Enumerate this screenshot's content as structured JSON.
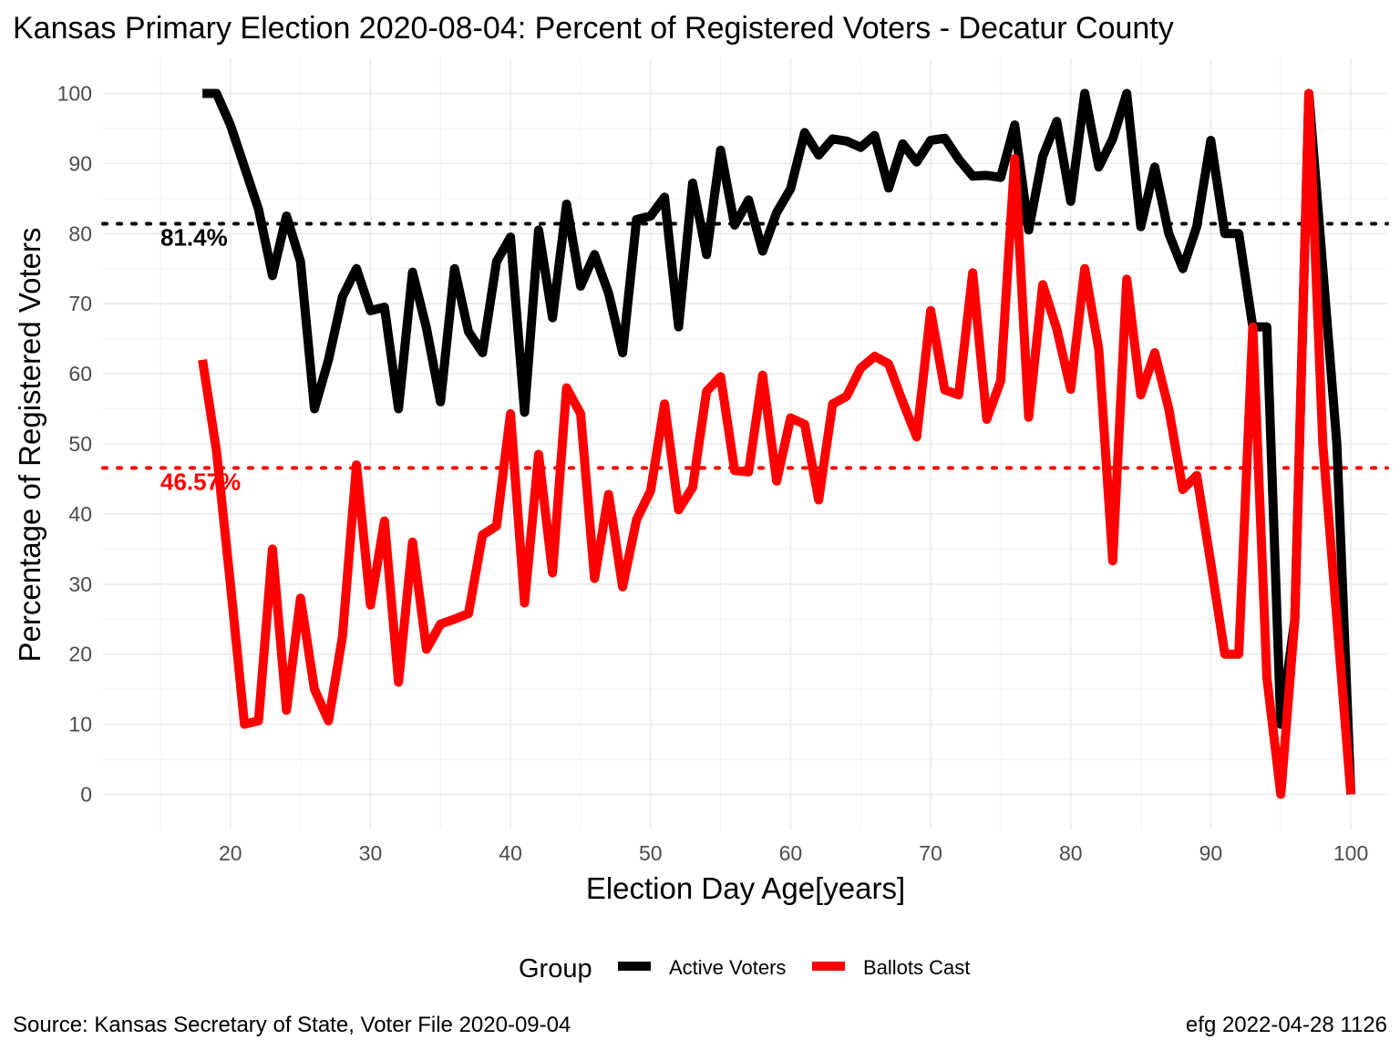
{
  "chart_data": {
    "type": "line",
    "title": "Kansas Primary Election 2020-08-04:  Percent of Registered Voters - Decatur County",
    "xlabel": "Election Day Age[years]",
    "ylabel": "Percentage of Registered Voters",
    "xlim": [
      10.9,
      102.6
    ],
    "ylim": [
      -5,
      105
    ],
    "x_ticks": [
      20,
      30,
      40,
      50,
      60,
      70,
      80,
      90,
      100
    ],
    "y_ticks": [
      0,
      10,
      20,
      30,
      40,
      50,
      60,
      70,
      80,
      90,
      100
    ],
    "grid": true,
    "legend": {
      "title": "Group",
      "position": "bottom"
    },
    "series": [
      {
        "name": "Active Voters",
        "color": "#000000",
        "x": [
          18,
          19,
          20,
          21,
          22,
          23,
          24,
          25,
          26,
          27,
          28,
          29,
          30,
          31,
          32,
          33,
          34,
          35,
          36,
          37,
          38,
          39,
          40,
          41,
          42,
          43,
          44,
          45,
          46,
          47,
          48,
          49,
          50,
          51,
          52,
          53,
          54,
          55,
          56,
          57,
          58,
          59,
          60,
          61,
          62,
          63,
          64,
          65,
          66,
          67,
          68,
          69,
          70,
          71,
          72,
          73,
          74,
          75,
          76,
          77,
          78,
          79,
          80,
          81,
          82,
          83,
          84,
          85,
          86,
          87,
          88,
          89,
          90,
          91,
          92,
          93,
          94,
          95,
          96,
          97,
          98,
          99,
          100
        ],
        "y": [
          100,
          100,
          95.5,
          89.5,
          83.5,
          74,
          82.5,
          76,
          55,
          62,
          71,
          75,
          69,
          69.5,
          55,
          74.5,
          66.5,
          56,
          75,
          66,
          63,
          76,
          79.5,
          54.5,
          80.5,
          68,
          84.2,
          72.5,
          77,
          71.5,
          63,
          82,
          82.5,
          85.2,
          66.7,
          87.2,
          77,
          91.9,
          81.2,
          84.8,
          77.5,
          83,
          86.4,
          94.4,
          91.2,
          93.5,
          93.2,
          92.3,
          94,
          86.5,
          92.8,
          90.2,
          93.3,
          93.6,
          90.6,
          88.2,
          88.3,
          88,
          95.5,
          80.5,
          91,
          96,
          84.6,
          100,
          89.5,
          93.5,
          100,
          81,
          89.5,
          80,
          75,
          81,
          93.3,
          80,
          80,
          66.7,
          66.7,
          10,
          25,
          100,
          75,
          50,
          0
        ]
      },
      {
        "name": "Ballots Cast",
        "color": "#ff0000",
        "x": [
          18,
          19,
          20,
          21,
          22,
          23,
          24,
          25,
          26,
          27,
          28,
          29,
          30,
          31,
          32,
          33,
          34,
          35,
          36,
          37,
          38,
          39,
          40,
          41,
          42,
          43,
          44,
          45,
          46,
          47,
          48,
          49,
          50,
          51,
          52,
          53,
          54,
          55,
          56,
          57,
          58,
          59,
          60,
          61,
          62,
          63,
          64,
          65,
          66,
          67,
          68,
          69,
          70,
          71,
          72,
          73,
          74,
          75,
          76,
          77,
          78,
          79,
          80,
          81,
          82,
          83,
          84,
          85,
          86,
          87,
          88,
          89,
          90,
          91,
          92,
          93,
          94,
          95,
          96,
          97,
          98,
          99,
          100
        ],
        "y": [
          62,
          49,
          30,
          10,
          10.5,
          35,
          12,
          28,
          15,
          10.5,
          22.5,
          47,
          27,
          39,
          16,
          36,
          20.7,
          24.3,
          25,
          25.8,
          37,
          38.3,
          54.3,
          27.3,
          48.5,
          31.6,
          58,
          54.3,
          30.8,
          42.8,
          29.6,
          39.2,
          43.3,
          55.7,
          40.6,
          43.8,
          57.5,
          59.6,
          46.2,
          46,
          59.8,
          44.7,
          53.7,
          52.8,
          42,
          55.7,
          56.8,
          60.8,
          62.5,
          61.4,
          56,
          51,
          69,
          57.7,
          57,
          74.4,
          53.5,
          59,
          90.7,
          53.8,
          72.7,
          66.4,
          57.8,
          75,
          63.5,
          33.3,
          73.5,
          57,
          63,
          55,
          43.5,
          45.5,
          33,
          20,
          20,
          66.7,
          16.7,
          0,
          25,
          100,
          50,
          25,
          0
        ]
      }
    ],
    "reference_lines": [
      {
        "value": 81.4,
        "label": "81.4%",
        "color": "#000000"
      },
      {
        "value": 46.57,
        "label": "46.57%",
        "color": "#ff0000"
      }
    ],
    "caption_left": "Source:  Kansas Secretary of State, Voter File  2020-09-04",
    "caption_right": "efg 2022-04-28 1126"
  }
}
